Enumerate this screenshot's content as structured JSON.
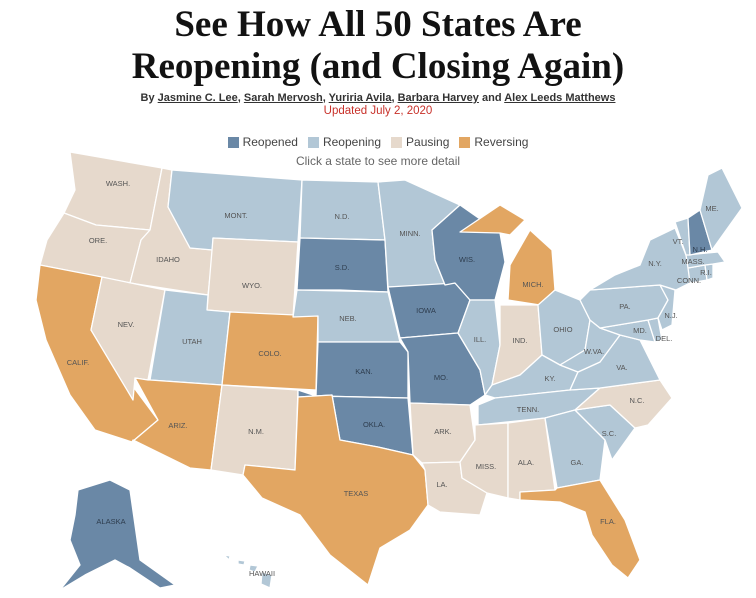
{
  "headline": {
    "line1": "See How All 50 States Are",
    "line2": "Reopening (and Closing Again)"
  },
  "byline": {
    "prefix": "By",
    "authors": [
      "Jasmine C. Lee",
      "Sarah Mervosh",
      "Yuriria Avila",
      "Barbara Harvey"
    ],
    "conjunction": "and",
    "last_author": "Alex Leeds Matthews"
  },
  "updated": "Updated July 2, 2020",
  "legend": [
    {
      "label": "Reopened",
      "color": "#6a88a6"
    },
    {
      "label": "Reopening",
      "color": "#b2c7d6"
    },
    {
      "label": "Pausing",
      "color": "#e6d9cc"
    },
    {
      "label": "Reversing",
      "color": "#e2a662"
    }
  ],
  "hint": "Click a state to see more detail",
  "status_colors": {
    "reopened": "#6a88a6",
    "reopening": "#b2c7d6",
    "pausing": "#e6d9cc",
    "reversing": "#e2a662"
  },
  "states": {
    "wa": {
      "label": "WASH.",
      "status": "pausing"
    },
    "or": {
      "label": "ORE.",
      "status": "pausing"
    },
    "ca": {
      "label": "CALIF.",
      "status": "reversing"
    },
    "id": {
      "label": "IDAHO",
      "status": "pausing"
    },
    "nv": {
      "label": "NEV.",
      "status": "pausing"
    },
    "mt": {
      "label": "MONT.",
      "status": "reopening"
    },
    "wy": {
      "label": "WYO.",
      "status": "pausing"
    },
    "ut": {
      "label": "UTAH",
      "status": "reopening"
    },
    "az": {
      "label": "ARIZ.",
      "status": "reversing"
    },
    "co": {
      "label": "COLO.",
      "status": "reversing"
    },
    "nm": {
      "label": "N.M.",
      "status": "pausing"
    },
    "nd": {
      "label": "N.D.",
      "status": "reopening"
    },
    "sd": {
      "label": "S.D.",
      "status": "reopened"
    },
    "ne": {
      "label": "NEB.",
      "status": "reopening"
    },
    "ks": {
      "label": "KAN.",
      "status": "reopened"
    },
    "ok": {
      "label": "OKLA.",
      "status": "reopened"
    },
    "tx": {
      "label": "TEXAS",
      "status": "reversing"
    },
    "mn": {
      "label": "MINN.",
      "status": "reopening"
    },
    "ia": {
      "label": "IOWA",
      "status": "reopened"
    },
    "mo": {
      "label": "MO.",
      "status": "reopened"
    },
    "ar": {
      "label": "ARK.",
      "status": "pausing"
    },
    "la": {
      "label": "LA.",
      "status": "pausing"
    },
    "wi": {
      "label": "WIS.",
      "status": "reopened"
    },
    "il": {
      "label": "ILL.",
      "status": "reopening"
    },
    "mi": {
      "label": "MICH.",
      "status": "reversing"
    },
    "in": {
      "label": "IND.",
      "status": "pausing"
    },
    "oh": {
      "label": "OHIO",
      "status": "reopening"
    },
    "ky": {
      "label": "KY.",
      "status": "reopening"
    },
    "tn": {
      "label": "TENN.",
      "status": "reopening"
    },
    "ms": {
      "label": "MISS.",
      "status": "pausing"
    },
    "al": {
      "label": "ALA.",
      "status": "pausing"
    },
    "ga": {
      "label": "GA.",
      "status": "reopening"
    },
    "fl": {
      "label": "FLA.",
      "status": "reversing"
    },
    "sc": {
      "label": "S.C.",
      "status": "reopening"
    },
    "nc": {
      "label": "N.C.",
      "status": "pausing"
    },
    "va": {
      "label": "VA.",
      "status": "reopening"
    },
    "wv": {
      "label": "W.VA.",
      "status": "reopening"
    },
    "md": {
      "label": "MD.",
      "status": "reopening"
    },
    "de": {
      "label": "DEL.",
      "status": "reopening"
    },
    "pa": {
      "label": "PA.",
      "status": "reopening"
    },
    "nj": {
      "label": "N.J.",
      "status": "reopening"
    },
    "ny": {
      "label": "N.Y.",
      "status": "reopening"
    },
    "ct": {
      "label": "CONN.",
      "status": "reopening"
    },
    "ri": {
      "label": "R.I.",
      "status": "reopening"
    },
    "ma": {
      "label": "MASS.",
      "status": "reopening"
    },
    "vt": {
      "label": "VT.",
      "status": "reopening"
    },
    "nh": {
      "label": "N.H.",
      "status": "reopened"
    },
    "me": {
      "label": "ME.",
      "status": "reopening"
    },
    "ak": {
      "label": "ALASKA",
      "status": "reopened"
    },
    "hi": {
      "label": "HAWAII",
      "status": "reopening"
    }
  }
}
